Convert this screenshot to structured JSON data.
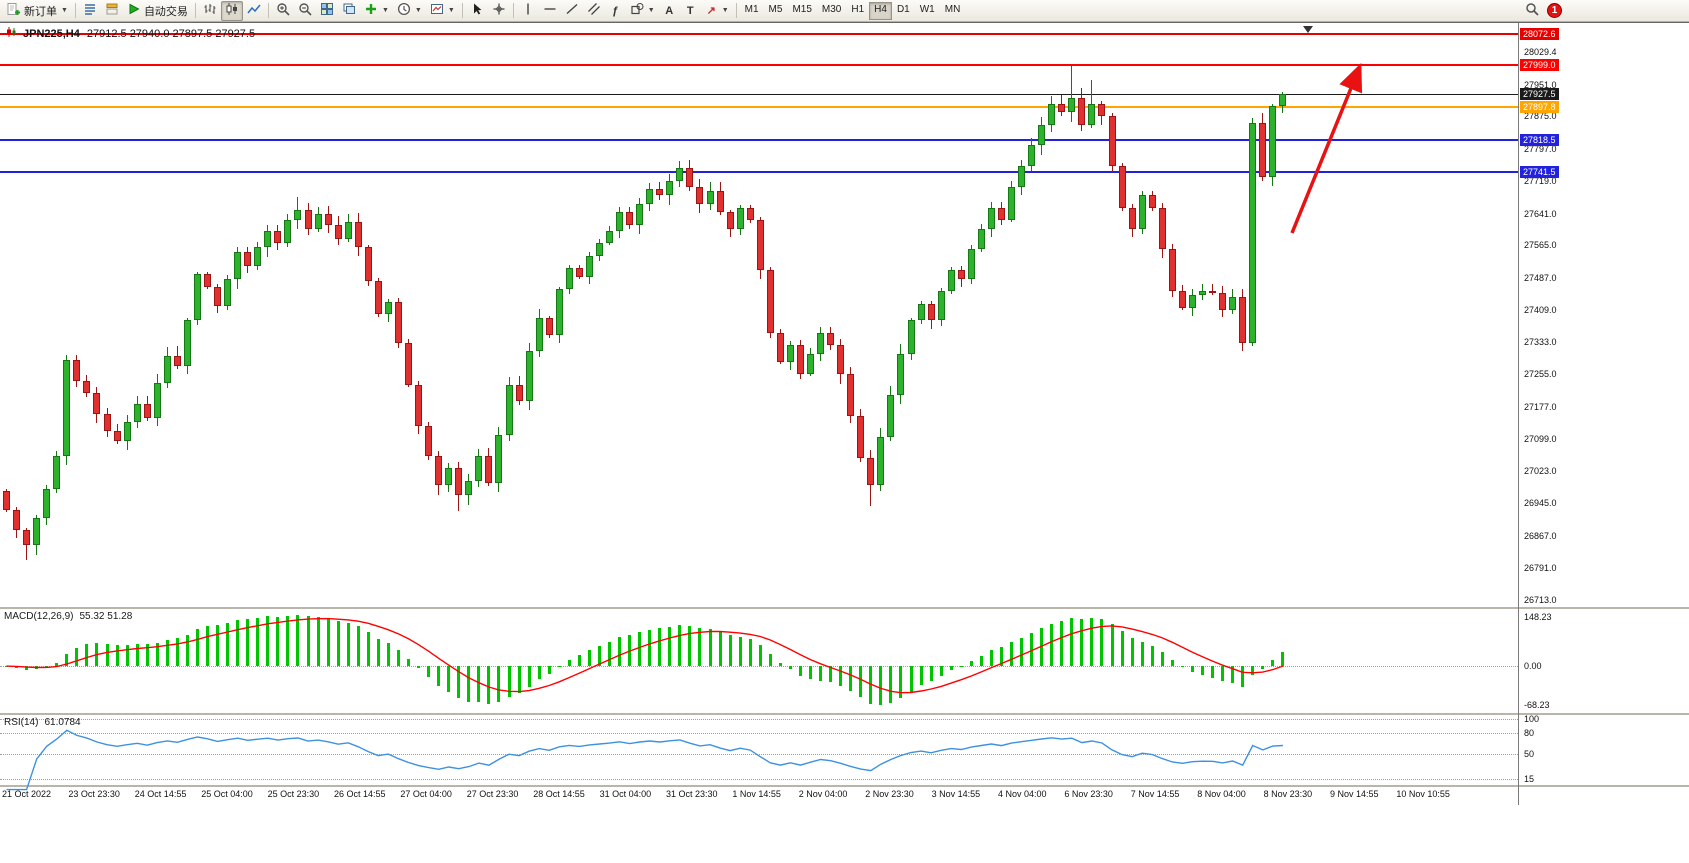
{
  "window": {
    "symbol_title": "JPN225,H4",
    "ohlc_title": "27912.5 27940.0 27897.5 27927.5"
  },
  "toolbar": {
    "new_order_label": "新订单",
    "autotrading_label": "自动交易",
    "timeframes": [
      "M1",
      "M5",
      "M15",
      "M30",
      "H1",
      "H4",
      "D1",
      "W1",
      "MN"
    ],
    "active_timeframe": "H4",
    "notification_count": "1",
    "items": [
      {
        "name": "new-order-button",
        "icon": "new-order-icon",
        "label_key": "new_order_label",
        "caret": true
      },
      {
        "sep": true
      },
      {
        "name": "market-watch-button",
        "icon": "market-watch-icon"
      },
      {
        "name": "navigator-button",
        "icon": "navigator-icon"
      },
      {
        "name": "autotrading-button",
        "icon": "autotrade-icon",
        "label_key": "autotrading_label"
      },
      {
        "sep": true
      },
      {
        "name": "bar-chart-button",
        "icon": "bar-chart-icon"
      },
      {
        "name": "candle-chart-button",
        "icon": "candle-chart-icon",
        "active": true
      },
      {
        "name": "line-chart-button",
        "icon": "line-chart-icon"
      },
      {
        "sep": true
      },
      {
        "name": "zoom-in-button",
        "icon": "zoom-in-icon"
      },
      {
        "name": "zoom-out-button",
        "icon": "zoom-out-icon"
      },
      {
        "name": "tile-windows-button",
        "icon": "tile-windows-icon"
      },
      {
        "name": "cascade-windows-button",
        "icon": "cascade-windows-icon"
      },
      {
        "name": "indicators-button",
        "icon": "indicators-icon",
        "caret": true
      },
      {
        "name": "periods-button",
        "icon": "periods-icon",
        "caret": true
      },
      {
        "name": "templates-button",
        "icon": "template-icon",
        "caret": true
      },
      {
        "sep": true
      },
      {
        "name": "cursor-button",
        "icon": "cursor-icon"
      },
      {
        "name": "crosshair-button",
        "icon": "crosshair-icon"
      },
      {
        "sep": true
      },
      {
        "name": "vertical-line-button",
        "icon": "vline-icon"
      },
      {
        "name": "horizontal-line-button",
        "icon": "hline-icon"
      },
      {
        "name": "trendline-button",
        "icon": "trendline-icon"
      },
      {
        "name": "channel-button",
        "icon": "channel-icon"
      },
      {
        "name": "fibonacci-button",
        "icon": "fibonacci-icon",
        "glyph": "ƒ"
      },
      {
        "name": "shapes-button",
        "icon": "shapes-icon",
        "caret": true
      },
      {
        "name": "text-button",
        "icon": "text-icon",
        "glyph": "A"
      },
      {
        "name": "text-label-button",
        "icon": "text-label-icon",
        "glyph": "T"
      },
      {
        "name": "arrows-button",
        "icon": "arrow-style-icon",
        "glyph": "↗",
        "glyph_color": "#c03030",
        "caret": true
      },
      {
        "sep": true
      },
      {
        "name": "timeframe-buttons"
      },
      {
        "spacer": true
      },
      {
        "name": "search-button",
        "icon": "search-icon"
      },
      {
        "name": "notifications-indicator",
        "badge_key": "notification_count"
      },
      {
        "end_pad": true
      }
    ]
  },
  "macd_panel": {
    "label": "MACD(12,26,9)",
    "values": "55.32 51.28",
    "axis_top": "148.23",
    "axis_zero": "0.00",
    "axis_bottom": "-68.23"
  },
  "rsi_panel": {
    "label": "RSI(14)",
    "value": "61.0784",
    "levels": [
      100,
      80,
      50,
      15
    ],
    "axis_labels": [
      "100",
      "80",
      "50",
      "15"
    ]
  },
  "chart_data": {
    "type": "candlestick",
    "symbol": "JPN225",
    "timeframe": "H4",
    "open_first": 26975,
    "closes": [
      26930,
      26880,
      26845,
      26910,
      26980,
      27060,
      27290,
      27240,
      27210,
      27160,
      27120,
      27095,
      27140,
      27185,
      27150,
      27235,
      27300,
      27275,
      27385,
      27495,
      27465,
      27420,
      27485,
      27550,
      27515,
      27560,
      27600,
      27570,
      27625,
      27650,
      27605,
      27640,
      27615,
      27580,
      27620,
      27560,
      27480,
      27400,
      27430,
      27330,
      27230,
      27130,
      27060,
      26990,
      27030,
      26965,
      27000,
      27060,
      26995,
      27110,
      27230,
      27190,
      27310,
      27390,
      27350,
      27460,
      27510,
      27490,
      27540,
      27570,
      27600,
      27645,
      27615,
      27665,
      27700,
      27685,
      27720,
      27750,
      27705,
      27665,
      27695,
      27645,
      27605,
      27655,
      27625,
      27505,
      27355,
      27285,
      27325,
      27255,
      27305,
      27355,
      27325,
      27255,
      27155,
      27055,
      26990,
      27105,
      27205,
      27305,
      27385,
      27425,
      27385,
      27455,
      27505,
      27485,
      27555,
      27605,
      27655,
      27625,
      27705,
      27755,
      27805,
      27855,
      27905,
      27885,
      27920,
      27855,
      27905,
      27875,
      27755,
      27655,
      27605,
      27685,
      27655,
      27555,
      27455,
      27415,
      27445,
      27455,
      27450,
      27410,
      27440,
      27330,
      27860,
      27730,
      27900,
      27927.5
    ],
    "wick_overrides": {
      "2": [
        null,
        26808
      ],
      "29": [
        27682,
        null
      ],
      "45": [
        null,
        26928
      ],
      "86": [
        null,
        26938
      ],
      "106": [
        27995,
        null
      ],
      "108": [
        27962,
        null
      ],
      "123": [
        null,
        27312
      ],
      "124": [
        27872,
        27322
      ]
    },
    "hlines": [
      {
        "price": 28072.6,
        "color": "#e60000",
        "w": 2,
        "role": "resistance-line-1"
      },
      {
        "price": 27999.0,
        "color": "#ff0000",
        "w": 2,
        "role": "resistance-line-2"
      },
      {
        "price": 27927.5,
        "color": "#1a1a1a",
        "w": 1,
        "role": "current-price-line"
      },
      {
        "price": 27897.8,
        "color": "#ffa500",
        "w": 2,
        "role": "pivot-line"
      },
      {
        "price": 27818.5,
        "color": "#2222dd",
        "w": 2,
        "role": "support-line-1"
      },
      {
        "price": 27741.5,
        "color": "#2222dd",
        "w": 2,
        "role": "support-line-2"
      }
    ],
    "y_ticks": [
      "28029.4",
      "27951.0",
      "27875.0",
      "27797.0",
      "27719.0",
      "27641.0",
      "27565.0",
      "27487.0",
      "27409.0",
      "27333.0",
      "27255.0",
      "27177.0",
      "27099.0",
      "27023.0",
      "26945.0",
      "26867.0",
      "26791.0",
      "26713.0"
    ],
    "x_labels": [
      "21 Oct 2022",
      "23 Oct 23:30",
      "24 Oct 14:55",
      "25 Oct 04:00",
      "25 Oct 23:30",
      "26 Oct 14:55",
      "27 Oct 04:00",
      "27 Oct 23:30",
      "28 Oct 14:55",
      "31 Oct 04:00",
      "31 Oct 23:30",
      "1 Nov 14:55",
      "2 Nov 04:00",
      "2 Nov 23:30",
      "3 Nov 14:55",
      "4 Nov 04:00",
      "6 Nov 23:30",
      "7 Nov 14:55",
      "8 Nov 04:00",
      "8 Nov 23:30",
      "9 Nov 14:55",
      "10 Nov 10:55"
    ],
    "colors": {
      "up": "#2db22d",
      "up_border": "#157815",
      "down": "#e13030",
      "down_border": "#9c1414",
      "macd_hist": "#00c400",
      "macd_signal": "#ff0000",
      "rsi": "#3d92e0",
      "arrow": "#e81212"
    },
    "trend_arrow": {
      "direction": "up",
      "color": "#e81212"
    }
  }
}
